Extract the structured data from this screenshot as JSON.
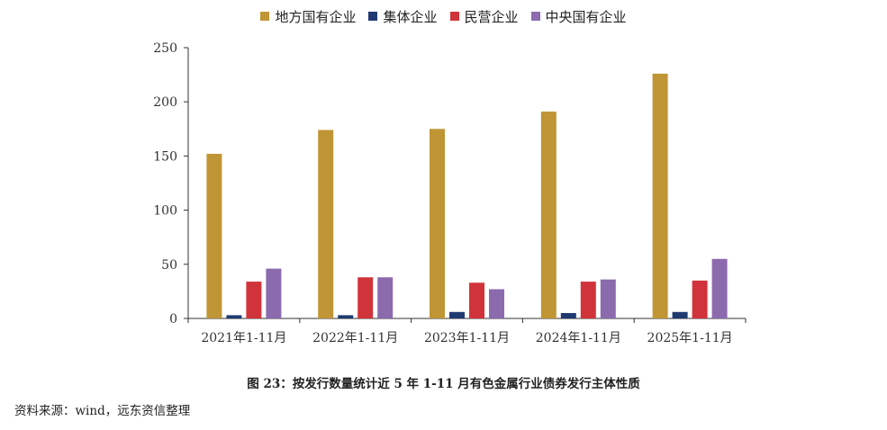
{
  "chart_data": {
    "type": "bar",
    "categories": [
      "2021年1-11月",
      "2022年1-11月",
      "2023年1-11月",
      "2024年1-11月",
      "2025年1-11月"
    ],
    "series": [
      {
        "name": "地方国有企业",
        "color": "#C09535",
        "values": [
          152,
          174,
          175,
          191,
          226
        ]
      },
      {
        "name": "集体企业",
        "color": "#1F3A70",
        "values": [
          3,
          3,
          6,
          5,
          6
        ]
      },
      {
        "name": "民营企业",
        "color": "#D0343A",
        "values": [
          34,
          38,
          33,
          34,
          35
        ]
      },
      {
        "name": "中央国有企业",
        "color": "#8C6AAE",
        "values": [
          46,
          38,
          27,
          36,
          55
        ]
      }
    ],
    "ylim": [
      0,
      250
    ],
    "yticks": [
      0,
      50,
      100,
      150,
      200,
      250
    ],
    "legend_position": "top-center",
    "grid": false
  },
  "caption": "图 23：按发行数量统计近 5 年 1-11 月有色金属行业债券发行主体性质",
  "source": "资料来源：wind，远东资信整理"
}
